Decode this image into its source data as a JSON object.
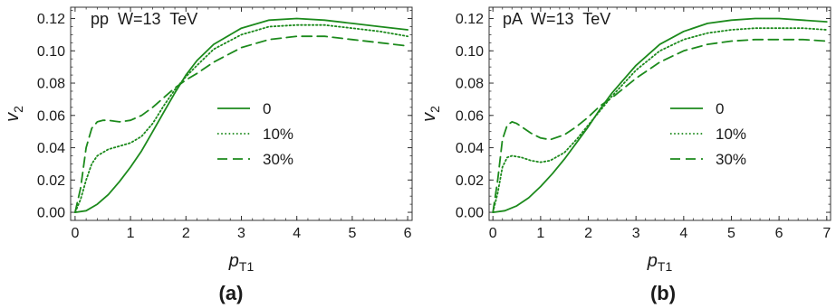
{
  "chart_data": [
    {
      "type": "line",
      "panel_label": "(a)",
      "annotation": "pp  W=13  TeV",
      "xlabel": "p",
      "xlabel_sub": "T1",
      "ylabel": "v",
      "ylabel_sub": "2",
      "xlim": [
        -0.08,
        6.08
      ],
      "ylim": [
        -0.005,
        0.127
      ],
      "xticks": [
        0,
        1,
        2,
        3,
        4,
        5,
        6
      ],
      "yticks": [
        0.0,
        0.02,
        0.04,
        0.06,
        0.08,
        0.1,
        0.12
      ],
      "ytick_labels": [
        "0.00",
        "0.02",
        "0.04",
        "0.06",
        "0.08",
        "0.10",
        "0.12"
      ],
      "legend_position": "center-right",
      "color": "#1c8a1c",
      "series": [
        {
          "name": "0",
          "style": "solid",
          "x": [
            0,
            0.2,
            0.4,
            0.6,
            0.8,
            1.0,
            1.2,
            1.4,
            1.6,
            1.8,
            2.0,
            2.2,
            2.5,
            3.0,
            3.5,
            4.0,
            4.5,
            5.0,
            5.5,
            6.0
          ],
          "y": [
            0.0,
            0.001,
            0.005,
            0.011,
            0.019,
            0.028,
            0.038,
            0.05,
            0.062,
            0.074,
            0.085,
            0.094,
            0.104,
            0.114,
            0.119,
            0.12,
            0.119,
            0.117,
            0.115,
            0.113
          ]
        },
        {
          "name": "10%",
          "style": "dotted",
          "x": [
            0,
            0.1,
            0.2,
            0.3,
            0.4,
            0.6,
            0.8,
            1.0,
            1.2,
            1.4,
            1.6,
            1.8,
            2.0,
            2.2,
            2.5,
            3.0,
            3.5,
            4.0,
            4.5,
            5.0,
            5.5,
            6.0
          ],
          "y": [
            0.0,
            0.008,
            0.02,
            0.03,
            0.035,
            0.039,
            0.041,
            0.043,
            0.047,
            0.055,
            0.066,
            0.076,
            0.084,
            0.091,
            0.101,
            0.11,
            0.115,
            0.116,
            0.116,
            0.114,
            0.112,
            0.109
          ]
        },
        {
          "name": "30%",
          "style": "dashed",
          "x": [
            0,
            0.1,
            0.2,
            0.3,
            0.4,
            0.5,
            0.6,
            0.8,
            1.0,
            1.2,
            1.4,
            1.6,
            1.8,
            2.0,
            2.2,
            2.5,
            3.0,
            3.5,
            4.0,
            4.5,
            5.0,
            5.5,
            6.0
          ],
          "y": [
            0.0,
            0.015,
            0.04,
            0.052,
            0.056,
            0.057,
            0.057,
            0.056,
            0.057,
            0.06,
            0.065,
            0.071,
            0.077,
            0.082,
            0.086,
            0.093,
            0.102,
            0.107,
            0.109,
            0.109,
            0.107,
            0.105,
            0.103
          ]
        }
      ]
    },
    {
      "type": "line",
      "panel_label": "(b)",
      "annotation": "pA  W=13  TeV",
      "xlabel": "p",
      "xlabel_sub": "T1",
      "ylabel": "v",
      "ylabel_sub": "2",
      "xlim": [
        -0.08,
        7.08
      ],
      "ylim": [
        -0.005,
        0.127
      ],
      "xticks": [
        0,
        1,
        2,
        3,
        4,
        5,
        6,
        7
      ],
      "yticks": [
        0.0,
        0.02,
        0.04,
        0.06,
        0.08,
        0.1,
        0.12
      ],
      "ytick_labels": [
        "0.00",
        "0.02",
        "0.04",
        "0.06",
        "0.08",
        "0.10",
        "0.12"
      ],
      "legend_position": "center-right",
      "color": "#1c8a1c",
      "series": [
        {
          "name": "0",
          "style": "solid",
          "x": [
            0,
            0.25,
            0.5,
            0.75,
            1.0,
            1.25,
            1.5,
            1.75,
            2.0,
            2.25,
            2.5,
            3.0,
            3.5,
            4.0,
            4.5,
            5.0,
            5.5,
            6.0,
            6.5,
            7.0
          ],
          "y": [
            0.0,
            0.001,
            0.004,
            0.009,
            0.016,
            0.024,
            0.033,
            0.043,
            0.053,
            0.064,
            0.074,
            0.091,
            0.104,
            0.112,
            0.117,
            0.119,
            0.12,
            0.12,
            0.119,
            0.118
          ]
        },
        {
          "name": "10%",
          "style": "dotted",
          "x": [
            0,
            0.1,
            0.2,
            0.3,
            0.4,
            0.6,
            0.8,
            1.0,
            1.2,
            1.5,
            1.75,
            2.0,
            2.25,
            2.5,
            3.0,
            3.5,
            4.0,
            4.5,
            5.0,
            5.5,
            6.0,
            6.5,
            7.0
          ],
          "y": [
            0.0,
            0.012,
            0.028,
            0.034,
            0.035,
            0.034,
            0.032,
            0.031,
            0.032,
            0.037,
            0.045,
            0.054,
            0.063,
            0.072,
            0.088,
            0.1,
            0.107,
            0.111,
            0.113,
            0.114,
            0.114,
            0.114,
            0.113
          ]
        },
        {
          "name": "30%",
          "style": "dashed",
          "x": [
            0,
            0.1,
            0.2,
            0.3,
            0.4,
            0.5,
            0.6,
            0.8,
            1.0,
            1.2,
            1.5,
            1.75,
            2.0,
            2.25,
            2.5,
            3.0,
            3.5,
            4.0,
            4.5,
            5.0,
            5.5,
            6.0,
            6.5,
            7.0
          ],
          "y": [
            0.0,
            0.02,
            0.045,
            0.054,
            0.056,
            0.055,
            0.053,
            0.049,
            0.046,
            0.045,
            0.048,
            0.053,
            0.059,
            0.066,
            0.071,
            0.083,
            0.093,
            0.1,
            0.104,
            0.106,
            0.107,
            0.107,
            0.107,
            0.106
          ]
        }
      ]
    }
  ]
}
